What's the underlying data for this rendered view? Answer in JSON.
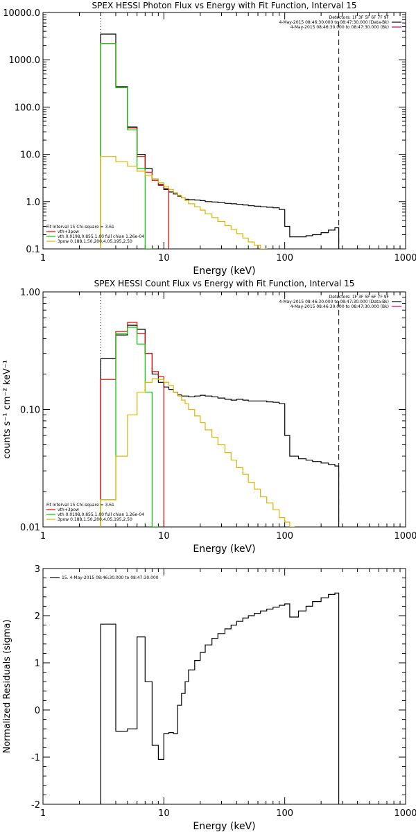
{
  "chart_data": [
    {
      "type": "line",
      "title": "SPEX HESSI Photon Flux vs Energy with Fit Function, Interval 15",
      "xlabel": "Energy (keV)",
      "ylabel": "",
      "xscale": "log",
      "yscale": "log",
      "xlim": [
        1,
        1000
      ],
      "ylim": [
        0.1,
        10000
      ],
      "x_tick_labels": [
        "1",
        "10",
        "100",
        "1000"
      ],
      "y_tick_labels": [
        "0.1",
        "1.0",
        "10.0",
        "100.0",
        "1000.0",
        "10000.0"
      ],
      "y_tick_values": [
        0.1,
        1,
        10,
        100,
        1000,
        10000
      ],
      "legend_right": [
        {
          "text": "Detectors: 1F 3F 5F 6F 7F 9F",
          "color": ""
        },
        {
          "text": "4-May-2015 08:46:30.000 to 08:47:30.000 (Data-Bk)",
          "color": "#000000"
        },
        {
          "text": "4-May-2015 08:46:30.000 to 08:47:30.000 (Bk)",
          "color": "#c8006e"
        }
      ],
      "legend_left": [
        {
          "text": "Fit Interval 15    Chi-square = 3.61",
          "color": ""
        },
        {
          "text": "vth+3pow",
          "color": "#e00000"
        },
        {
          "text": "vth 0.0198,0.855,1.00  full chian 1.26e-04",
          "color": "#00c800"
        },
        {
          "text": "3pow 0.188,1.50,200,4.05,195,2.50",
          "color": "#d9b400"
        }
      ],
      "vlines": [
        {
          "x": 3,
          "style": "dotted"
        },
        {
          "x": 280,
          "style": "dashed"
        }
      ],
      "series": [
        {
          "color": "#000000",
          "edges": [
            3,
            4,
            5,
            6,
            7,
            8,
            9,
            10,
            11,
            12,
            13,
            14,
            15,
            16,
            18,
            20,
            22,
            25,
            28,
            32,
            36,
            40,
            45,
            50,
            56,
            63,
            71,
            80,
            90,
            100,
            110,
            130,
            150,
            170,
            200,
            230,
            260,
            280
          ],
          "values": [
            3500,
            270,
            38,
            10,
            5,
            3,
            2.3,
            1.8,
            1.6,
            1.45,
            1.3,
            1.2,
            1.12,
            1.1,
            1.08,
            1.05,
            1.0,
            0.98,
            0.95,
            0.92,
            0.9,
            0.88,
            0.85,
            0.82,
            0.8,
            0.78,
            0.76,
            0.74,
            0.68,
            0.3,
            0.18,
            0.18,
            0.19,
            0.2,
            0.22,
            0.25,
            0.28
          ]
        },
        {
          "color": "#e00000",
          "edges": [
            3,
            4,
            5,
            6,
            7,
            8,
            9,
            10,
            11
          ],
          "values": [
            2200,
            260,
            36,
            9,
            4.2,
            2.8,
            2.2,
            1.9
          ]
        },
        {
          "color": "#00c800",
          "edges": [
            3,
            4,
            5,
            6,
            7,
            8
          ],
          "values": [
            2200,
            260,
            33,
            5,
            0.1
          ]
        },
        {
          "color": "#d9b400",
          "edges": [
            3,
            4,
            5,
            6,
            7,
            8,
            9,
            10,
            11,
            12,
            13,
            14,
            15,
            16,
            18,
            20,
            22,
            25,
            28,
            32,
            36,
            40,
            45,
            50,
            56,
            63,
            71,
            80
          ],
          "values": [
            9,
            7,
            5.6,
            4.4,
            3.6,
            3,
            2.5,
            2.1,
            1.8,
            1.55,
            1.35,
            1.2,
            1.05,
            0.9,
            0.78,
            0.66,
            0.55,
            0.46,
            0.38,
            0.31,
            0.26,
            0.21,
            0.17,
            0.14,
            0.12,
            0.1,
            0.09
          ]
        }
      ]
    },
    {
      "type": "line",
      "title": "SPEX HESSI Count Flux vs Energy with Fit Function, Interval 15",
      "xlabel": "Energy (keV)",
      "ylabel": "counts s⁻¹ cm⁻² keV⁻¹",
      "xscale": "log",
      "yscale": "log",
      "xlim": [
        1,
        1000
      ],
      "ylim": [
        0.01,
        1
      ],
      "x_tick_labels": [
        "1",
        "10",
        "100",
        "1000"
      ],
      "y_tick_labels": [
        "0.01",
        "0.10",
        "1.00"
      ],
      "y_tick_values": [
        0.01,
        0.1,
        1
      ],
      "legend_right": [
        {
          "text": "Detectors: 1F 3F 5F 6F 7F 9F",
          "color": ""
        },
        {
          "text": "4-May-2015 08:46:30.000 to 08:47:30.000 (Data-Bk)",
          "color": "#000000"
        },
        {
          "text": "4-May-2015 08:46:30.000 to 08:47:30.000 (Bk)",
          "color": "#c8006e"
        }
      ],
      "legend_left": [
        {
          "text": "Fit Interval 15    Chi-square = 3.61",
          "color": ""
        },
        {
          "text": "vth+3pow",
          "color": "#e00000"
        },
        {
          "text": "vth 0.0198,0.855,1.00  full chian 1.26e-04",
          "color": "#00c800"
        },
        {
          "text": "3pow 0.188,1.50,200,4.05,195,2.50",
          "color": "#d9b400"
        }
      ],
      "vlines": [
        {
          "x": 3,
          "style": "dotted"
        },
        {
          "x": 280,
          "style": "dashed"
        }
      ],
      "series": [
        {
          "color": "#000000",
          "edges": [
            3,
            4,
            5,
            6,
            7,
            8,
            9,
            10,
            11,
            12,
            13,
            14,
            15,
            16,
            18,
            20,
            22,
            25,
            28,
            32,
            36,
            40,
            45,
            50,
            56,
            63,
            71,
            80,
            90,
            100,
            110,
            130,
            150,
            170,
            200,
            230,
            260,
            280
          ],
          "values": [
            0.27,
            0.43,
            0.52,
            0.48,
            0.3,
            0.2,
            0.17,
            0.155,
            0.148,
            0.14,
            0.133,
            0.13,
            0.13,
            0.128,
            0.13,
            0.132,
            0.13,
            0.128,
            0.125,
            0.122,
            0.12,
            0.122,
            0.12,
            0.118,
            0.118,
            0.118,
            0.116,
            0.115,
            0.112,
            0.06,
            0.04,
            0.038,
            0.037,
            0.036,
            0.035,
            0.034,
            0.033
          ]
        },
        {
          "color": "#e00000",
          "edges": [
            3,
            4,
            5,
            6,
            7,
            8,
            9,
            10
          ],
          "values": [
            0.18,
            0.46,
            0.55,
            0.44,
            0.3,
            0.21,
            0.19
          ]
        },
        {
          "color": "#00c800",
          "edges": [
            3,
            4,
            5,
            6,
            7,
            8,
            9
          ],
          "values": [
            0.017,
            0.44,
            0.5,
            0.36,
            0.14,
            0.01
          ]
        },
        {
          "color": "#d9b400",
          "edges": [
            3,
            4,
            5,
            6,
            7,
            8,
            9,
            10,
            11,
            12,
            13,
            14,
            15,
            16,
            18,
            20,
            22,
            25,
            28,
            32,
            36,
            40,
            45,
            50,
            56,
            63,
            71,
            80,
            90,
            100,
            110,
            120
          ],
          "values": [
            0.017,
            0.04,
            0.09,
            0.14,
            0.17,
            0.182,
            0.18,
            0.17,
            0.16,
            0.14,
            0.13,
            0.12,
            0.112,
            0.1,
            0.088,
            0.077,
            0.067,
            0.058,
            0.05,
            0.043,
            0.037,
            0.032,
            0.028,
            0.024,
            0.021,
            0.018,
            0.016,
            0.014,
            0.012,
            0.011,
            0.01
          ]
        }
      ]
    },
    {
      "type": "line",
      "title": "",
      "xlabel": "Energy (keV)",
      "ylabel": "Normalized Residuals (sigma)",
      "xscale": "log",
      "yscale": "linear",
      "xlim": [
        1,
        1000
      ],
      "ylim": [
        -2,
        3
      ],
      "x_tick_labels": [
        "1",
        "10",
        "100",
        "1000"
      ],
      "y_tick_labels": [
        "-2",
        "-1",
        "0",
        "1",
        "2",
        "3"
      ],
      "y_tick_values": [
        -2,
        -1,
        0,
        1,
        2,
        3
      ],
      "legend_right": [],
      "legend_left": [],
      "legend_top_left": {
        "text": "15.  4-May-2015 08:46:30.000 to 08:47:30.000",
        "color": "#000000"
      },
      "vlines": [],
      "series": [
        {
          "color": "#000000",
          "edges": [
            3,
            4,
            5,
            6,
            7,
            8,
            9,
            10,
            11,
            12,
            13,
            14,
            15,
            16,
            18,
            20,
            22,
            25,
            28,
            32,
            36,
            40,
            45,
            50,
            56,
            63,
            71,
            80,
            90,
            100,
            110,
            130,
            150,
            170,
            200,
            230,
            260,
            280
          ],
          "values": [
            1.82,
            -0.45,
            -0.4,
            1.55,
            0.6,
            -0.75,
            -1.05,
            -0.5,
            -0.48,
            -0.5,
            0.1,
            0.35,
            0.6,
            0.85,
            1.05,
            1.22,
            1.38,
            1.52,
            1.62,
            1.72,
            1.8,
            1.88,
            1.95,
            2.0,
            2.05,
            2.1,
            2.14,
            2.18,
            2.22,
            2.25,
            1.97,
            2.1,
            2.2,
            2.3,
            2.38,
            2.45,
            2.48
          ]
        }
      ]
    }
  ]
}
